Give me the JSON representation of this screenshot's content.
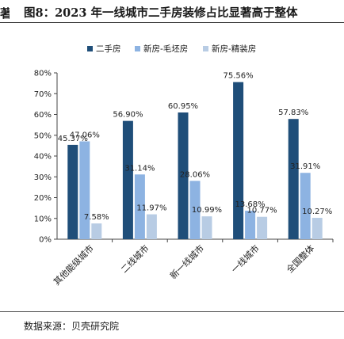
{
  "page": {
    "cutoff_char": "著",
    "title": "图8：2023 年一线城市二手房装修占比显著高于整体",
    "source": "数据来源：贝壳研究院"
  },
  "chart_data": {
    "type": "bar",
    "title": "",
    "xlabel": "",
    "ylabel": "",
    "ylim": [
      0,
      80
    ],
    "yticks": [
      0,
      10,
      20,
      30,
      40,
      50,
      60,
      70,
      80
    ],
    "ytick_labels": [
      "0%",
      "10%",
      "20%",
      "30%",
      "40%",
      "50%",
      "60%",
      "70%",
      "80%"
    ],
    "categories": [
      "其他能级城市",
      "二线城市",
      "新一线城市",
      "一线城市",
      "全国整体"
    ],
    "series": [
      {
        "name": "二手房",
        "color": "#1f4e79",
        "values": [
          45.37,
          56.9,
          60.95,
          75.56,
          57.83
        ],
        "labels": [
          "45.37%",
          "56.90%",
          "60.95%",
          "75.56%",
          "57.83%"
        ]
      },
      {
        "name": "新房-毛坯房",
        "color": "#8db3e2",
        "values": [
          47.06,
          31.14,
          28.06,
          13.68,
          31.91
        ],
        "labels": [
          "47.06%",
          "31.14%",
          "28.06%",
          "13.68%",
          "31.91%"
        ]
      },
      {
        "name": "新房-精装房",
        "color": "#b8cce4",
        "values": [
          7.58,
          11.97,
          10.99,
          10.77,
          10.27
        ],
        "labels": [
          "7.58%",
          "11.97%",
          "10.99%",
          "10.77%",
          "10.27%"
        ]
      }
    ],
    "grid": false,
    "legend_position": "top"
  }
}
